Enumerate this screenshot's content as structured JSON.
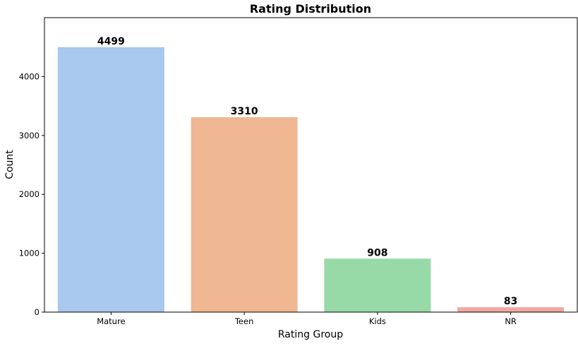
{
  "chart_data": {
    "type": "bar",
    "title": "Rating Distribution",
    "xlabel": "Rating Group",
    "ylabel": "Count",
    "categories": [
      "Mature",
      "Teen",
      "Kids",
      "NR"
    ],
    "values": [
      4499,
      3310,
      908,
      83
    ],
    "data_labels": [
      "4499",
      "3310",
      "908",
      "83"
    ],
    "colors": [
      "#a8c8ed",
      "#efb792",
      "#98d9a8",
      "#f2a8a2"
    ],
    "ylim": [
      0,
      5000
    ],
    "yticks": [
      0,
      1000,
      2000,
      3000,
      4000
    ],
    "ytick_labels": [
      "0",
      "1000",
      "2000",
      "3000",
      "4000"
    ],
    "grid": false,
    "legend": "none"
  }
}
